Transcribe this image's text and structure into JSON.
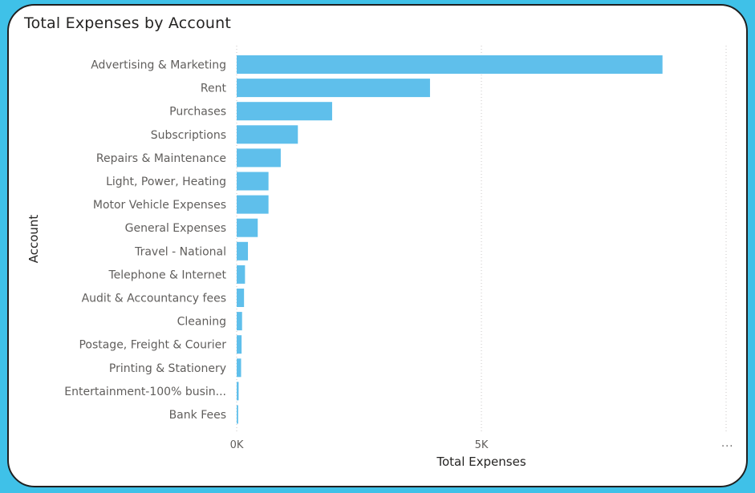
{
  "chart_data": {
    "type": "bar",
    "orientation": "horizontal",
    "title": "Total Expenses by Account",
    "xlabel": "Total Expenses",
    "ylabel": "Account",
    "x_ticks": [
      "0K",
      "5K"
    ],
    "xlim": [
      0,
      10000
    ],
    "categories": [
      "Advertising & Marketing",
      "Rent",
      "Purchases",
      "Subscriptions",
      "Repairs & Maintenance",
      "Light, Power, Heating",
      "Motor Vehicle Expenses",
      "General Expenses",
      "Travel - National",
      "Telephone & Internet",
      "Audit & Accountancy fees",
      "Cleaning",
      "Postage, Freight & Courier",
      "Printing & Stationery",
      "Entertainment-100% busin...",
      "Bank Fees"
    ],
    "values": [
      8700,
      3950,
      1950,
      1250,
      900,
      650,
      650,
      430,
      230,
      170,
      150,
      110,
      100,
      90,
      40,
      30
    ],
    "bar_color": "#5fbfeb",
    "grid": true
  },
  "more_indicator": "..."
}
